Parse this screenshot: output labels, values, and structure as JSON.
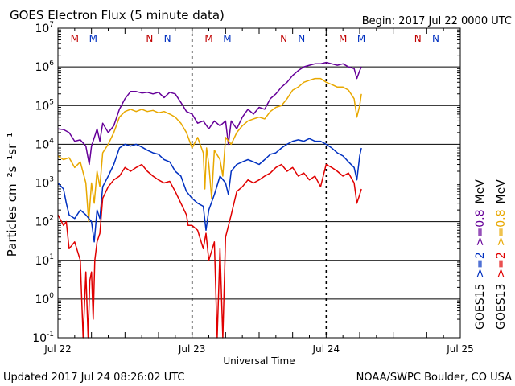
{
  "chart_data": {
    "type": "line",
    "title": "GOES Electron Flux (5 minute data)",
    "begin_label": "Begin: 2017 Jul 22 0000 UTC",
    "xlabel": "Universal Time",
    "ylabel": "Particles cm⁻²s⁻¹sr⁻¹",
    "yscale": "log",
    "ylim": [
      0.1,
      10000000
    ],
    "xlim_hours": [
      0,
      72
    ],
    "y_ticks": [
      {
        "base": "10",
        "exp": "-1",
        "value": 0.1
      },
      {
        "base": "10",
        "exp": "0",
        "value": 1
      },
      {
        "base": "10",
        "exp": "1",
        "value": 10
      },
      {
        "base": "10",
        "exp": "2",
        "value": 100
      },
      {
        "base": "10",
        "exp": "3",
        "value": 1000
      },
      {
        "base": "10",
        "exp": "4",
        "value": 10000
      },
      {
        "base": "10",
        "exp": "5",
        "value": 100000
      },
      {
        "base": "10",
        "exp": "6",
        "value": 1000000
      },
      {
        "base": "10",
        "exp": "7",
        "value": 10000000
      }
    ],
    "x_ticks": [
      {
        "label": "Jul 22",
        "hour": 0
      },
      {
        "label": "Jul 23",
        "hour": 24
      },
      {
        "label": "Jul 24",
        "hour": 48
      },
      {
        "label": "Jul 25",
        "hour": 72
      }
    ],
    "threshold": {
      "value": 1000,
      "style": "dashed"
    },
    "markers": [
      {
        "label": "M",
        "hour": 3.0,
        "color": "#c00000"
      },
      {
        "label": "M",
        "hour": 6.3,
        "color": "#0030c0"
      },
      {
        "label": "N",
        "hour": 16.4,
        "color": "#c00000"
      },
      {
        "label": "N",
        "hour": 19.6,
        "color": "#0030c0"
      },
      {
        "label": "M",
        "hour": 27.0,
        "color": "#c00000"
      },
      {
        "label": "M",
        "hour": 30.3,
        "color": "#0030c0"
      },
      {
        "label": "N",
        "hour": 40.4,
        "color": "#c00000"
      },
      {
        "label": "N",
        "hour": 43.6,
        "color": "#0030c0"
      },
      {
        "label": "M",
        "hour": 51.0,
        "color": "#c00000"
      },
      {
        "label": "M",
        "hour": 54.3,
        "color": "#0030c0"
      },
      {
        "label": "N",
        "hour": 64.4,
        "color": "#c00000"
      },
      {
        "label": "N",
        "hour": 67.6,
        "color": "#0030c0"
      }
    ],
    "series": [
      {
        "name": "GOES15 >=0.8 MeV",
        "color": "#660099",
        "points": [
          [
            0,
            25000
          ],
          [
            1,
            24000
          ],
          [
            2,
            20000
          ],
          [
            3,
            12000
          ],
          [
            4,
            13000
          ],
          [
            5,
            9000
          ],
          [
            5.6,
            3000
          ],
          [
            6,
            9000
          ],
          [
            6.7,
            18000
          ],
          [
            7,
            25000
          ],
          [
            7.5,
            12000
          ],
          [
            8,
            35000
          ],
          [
            9,
            20000
          ],
          [
            10,
            30000
          ],
          [
            11,
            80000
          ],
          [
            12,
            150000
          ],
          [
            13,
            230000
          ],
          [
            14,
            230000
          ],
          [
            15,
            210000
          ],
          [
            16,
            220000
          ],
          [
            17,
            200000
          ],
          [
            18,
            220000
          ],
          [
            19,
            160000
          ],
          [
            20,
            220000
          ],
          [
            21,
            200000
          ],
          [
            22,
            120000
          ],
          [
            23,
            70000
          ],
          [
            24,
            60000
          ],
          [
            25,
            35000
          ],
          [
            26,
            40000
          ],
          [
            27,
            25000
          ],
          [
            28,
            40000
          ],
          [
            29,
            30000
          ],
          [
            30,
            40000
          ],
          [
            30.5,
            10000
          ],
          [
            31,
            40000
          ],
          [
            32,
            25000
          ],
          [
            33,
            50000
          ],
          [
            34,
            80000
          ],
          [
            35,
            60000
          ],
          [
            36,
            90000
          ],
          [
            37,
            80000
          ],
          [
            38,
            150000
          ],
          [
            39,
            200000
          ],
          [
            40,
            300000
          ],
          [
            41,
            400000
          ],
          [
            42,
            600000
          ],
          [
            43,
            800000
          ],
          [
            44,
            1000000
          ],
          [
            45,
            1100000
          ],
          [
            46,
            1200000
          ],
          [
            47,
            1200000
          ],
          [
            48,
            1300000
          ],
          [
            49,
            1200000
          ],
          [
            50,
            1100000
          ],
          [
            51,
            1200000
          ],
          [
            52,
            1000000
          ],
          [
            53,
            900000
          ],
          [
            53.5,
            500000
          ],
          [
            54,
            800000
          ],
          [
            54.3,
            1000000
          ]
        ]
      },
      {
        "name": "GOES13 >=0.8 MeV",
        "color": "#e8a800",
        "points": [
          [
            0,
            5000
          ],
          [
            1,
            4000
          ],
          [
            2,
            4500
          ],
          [
            3,
            2500
          ],
          [
            4,
            3500
          ],
          [
            5,
            1000
          ],
          [
            5.5,
            100
          ],
          [
            6,
            1000
          ],
          [
            6.5,
            300
          ],
          [
            7,
            2000
          ],
          [
            7.5,
            800
          ],
          [
            8,
            6000
          ],
          [
            9,
            10000
          ],
          [
            10,
            20000
          ],
          [
            11,
            50000
          ],
          [
            12,
            70000
          ],
          [
            13,
            80000
          ],
          [
            14,
            70000
          ],
          [
            15,
            80000
          ],
          [
            16,
            70000
          ],
          [
            17,
            75000
          ],
          [
            18,
            65000
          ],
          [
            19,
            70000
          ],
          [
            20,
            60000
          ],
          [
            21,
            50000
          ],
          [
            22,
            35000
          ],
          [
            23,
            20000
          ],
          [
            24,
            8000
          ],
          [
            25,
            15000
          ],
          [
            26,
            6000
          ],
          [
            26.3,
            700
          ],
          [
            26.6,
            8000
          ],
          [
            27,
            3000
          ],
          [
            27.5,
            400
          ],
          [
            28,
            7000
          ],
          [
            29,
            4000
          ],
          [
            29.5,
            1500
          ],
          [
            30,
            15000
          ],
          [
            31,
            10000
          ],
          [
            32,
            20000
          ],
          [
            33,
            30000
          ],
          [
            34,
            40000
          ],
          [
            35,
            45000
          ],
          [
            36,
            50000
          ],
          [
            37,
            45000
          ],
          [
            38,
            70000
          ],
          [
            39,
            90000
          ],
          [
            40,
            100000
          ],
          [
            41,
            150000
          ],
          [
            42,
            250000
          ],
          [
            43,
            300000
          ],
          [
            44,
            400000
          ],
          [
            45,
            450000
          ],
          [
            46,
            500000
          ],
          [
            47,
            500000
          ],
          [
            48,
            400000
          ],
          [
            49,
            350000
          ],
          [
            50,
            300000
          ],
          [
            51,
            300000
          ],
          [
            52,
            250000
          ],
          [
            53,
            150000
          ],
          [
            53.5,
            50000
          ],
          [
            54,
            100000
          ],
          [
            54.3,
            200000
          ]
        ]
      },
      {
        "name": "GOES15 >=2 MeV",
        "color": "#0030c0",
        "points": [
          [
            0,
            1000
          ],
          [
            1,
            700
          ],
          [
            1.5,
            300
          ],
          [
            2,
            150
          ],
          [
            3,
            120
          ],
          [
            4,
            200
          ],
          [
            5,
            150
          ],
          [
            6,
            100
          ],
          [
            6.5,
            30
          ],
          [
            7,
            200
          ],
          [
            7.5,
            120
          ],
          [
            8,
            800
          ],
          [
            9,
            1500
          ],
          [
            10,
            3000
          ],
          [
            11,
            8000
          ],
          [
            12,
            10000
          ],
          [
            13,
            9000
          ],
          [
            14,
            10000
          ],
          [
            15,
            8500
          ],
          [
            16,
            7000
          ],
          [
            17,
            6000
          ],
          [
            18,
            5500
          ],
          [
            19,
            4000
          ],
          [
            20,
            3500
          ],
          [
            21,
            2000
          ],
          [
            22,
            1500
          ],
          [
            23,
            600
          ],
          [
            24,
            400
          ],
          [
            25,
            300
          ],
          [
            26,
            250
          ],
          [
            26.5,
            60
          ],
          [
            27,
            200
          ],
          [
            28,
            500
          ],
          [
            29,
            1500
          ],
          [
            30,
            1000
          ],
          [
            30.5,
            500
          ],
          [
            31,
            2000
          ],
          [
            32,
            3000
          ],
          [
            33,
            3500
          ],
          [
            34,
            4000
          ],
          [
            35,
            3500
          ],
          [
            36,
            3000
          ],
          [
            37,
            4000
          ],
          [
            38,
            5500
          ],
          [
            39,
            6000
          ],
          [
            40,
            8000
          ],
          [
            41,
            10000
          ],
          [
            42,
            12000
          ],
          [
            43,
            13000
          ],
          [
            44,
            12000
          ],
          [
            45,
            14000
          ],
          [
            46,
            12000
          ],
          [
            47,
            12000
          ],
          [
            48,
            10000
          ],
          [
            49,
            8000
          ],
          [
            50,
            6000
          ],
          [
            51,
            5000
          ],
          [
            52,
            3500
          ],
          [
            53,
            2500
          ],
          [
            53.5,
            1200
          ],
          [
            54,
            5000
          ],
          [
            54.3,
            8000
          ]
        ]
      },
      {
        "name": "GOES13 >=2 MeV",
        "color": "#e00000",
        "points": [
          [
            0,
            150
          ],
          [
            1,
            80
          ],
          [
            1.5,
            100
          ],
          [
            2,
            20
          ],
          [
            3,
            30
          ],
          [
            4,
            10
          ],
          [
            4.5,
            0.1
          ],
          [
            5,
            5
          ],
          [
            5.4,
            0.1
          ],
          [
            5.7,
            3
          ],
          [
            6,
            5
          ],
          [
            6.3,
            0.3
          ],
          [
            6.6,
            10
          ],
          [
            7,
            30
          ],
          [
            7.5,
            50
          ],
          [
            8,
            400
          ],
          [
            9,
            800
          ],
          [
            10,
            1200
          ],
          [
            11,
            1500
          ],
          [
            12,
            2500
          ],
          [
            13,
            2000
          ],
          [
            14,
            2500
          ],
          [
            15,
            3000
          ],
          [
            16,
            2000
          ],
          [
            17,
            1500
          ],
          [
            18,
            1200
          ],
          [
            19,
            1000
          ],
          [
            20,
            1100
          ],
          [
            21,
            600
          ],
          [
            22,
            300
          ],
          [
            23,
            150
          ],
          [
            23.3,
            80
          ],
          [
            24,
            80
          ],
          [
            25,
            60
          ],
          [
            26,
            20
          ],
          [
            26.5,
            50
          ],
          [
            27,
            10
          ],
          [
            28,
            30
          ],
          [
            28.5,
            0.1
          ],
          [
            29,
            20
          ],
          [
            29.5,
            0.1
          ],
          [
            30,
            40
          ],
          [
            31,
            150
          ],
          [
            32,
            600
          ],
          [
            33,
            800
          ],
          [
            34,
            1200
          ],
          [
            35,
            1000
          ],
          [
            36,
            1200
          ],
          [
            37,
            1500
          ],
          [
            38,
            1800
          ],
          [
            39,
            2500
          ],
          [
            40,
            3000
          ],
          [
            41,
            2000
          ],
          [
            42,
            2500
          ],
          [
            43,
            1500
          ],
          [
            44,
            1800
          ],
          [
            45,
            1200
          ],
          [
            46,
            1500
          ],
          [
            47,
            800
          ],
          [
            48,
            3000
          ],
          [
            49,
            2500
          ],
          [
            50,
            2000
          ],
          [
            51,
            1500
          ],
          [
            52,
            1800
          ],
          [
            53,
            1000
          ],
          [
            53.5,
            300
          ],
          [
            54,
            500
          ],
          [
            54.3,
            700
          ]
        ]
      }
    ],
    "right_legend": [
      {
        "text": "GOES15",
        "color": "#000000",
        "col": 1
      },
      {
        "text": ">=2",
        "color": "#0030c0",
        "col": 1
      },
      {
        "text": ">=0.8",
        "color": "#660099",
        "col": 1
      },
      {
        "text": "MeV",
        "color": "#000000",
        "col": 1
      },
      {
        "text": "GOES13",
        "color": "#000000",
        "col": 2
      },
      {
        "text": ">=2",
        "color": "#e00000",
        "col": 2
      },
      {
        "text": ">=0.8",
        "color": "#e8a800",
        "col": 2
      },
      {
        "text": "MeV",
        "color": "#000000",
        "col": 2
      }
    ]
  },
  "footer": {
    "updated": "Updated 2017 Jul 24 08:26:02 UTC",
    "credit": "NOAA/SWPC Boulder, CO USA"
  }
}
